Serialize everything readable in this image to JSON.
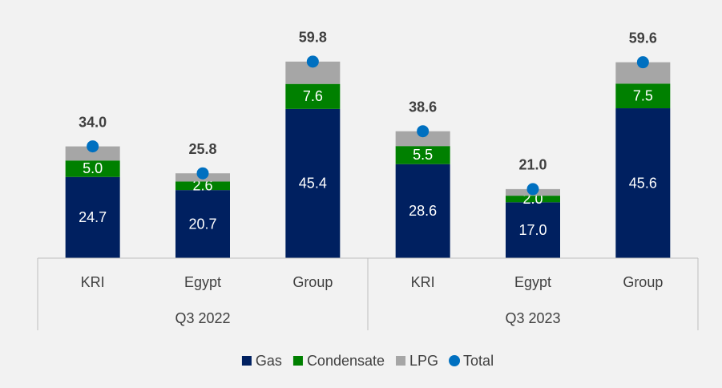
{
  "chart_data": {
    "type": "bar",
    "stacked": true,
    "categories": [
      "KRI",
      "Egypt",
      "Group",
      "KRI",
      "Egypt",
      "Group"
    ],
    "groups": [
      "Q3 2022",
      "Q3 2023"
    ],
    "series": [
      {
        "name": "Gas",
        "color": "#002060",
        "values": [
          24.7,
          20.7,
          45.4,
          28.6,
          17.0,
          45.6
        ],
        "value_labels": [
          "24.7",
          "20.7",
          "45.4",
          "28.6",
          "17.0",
          "45.6"
        ]
      },
      {
        "name": "Condensate",
        "color": "#008000",
        "values": [
          5.0,
          2.6,
          7.6,
          5.5,
          2.0,
          7.5
        ],
        "value_labels": [
          "5.0",
          "2.6",
          "7.6",
          "5.5",
          "2.0",
          "7.5"
        ]
      },
      {
        "name": "LPG",
        "color": "#a6a6a6",
        "values": [
          4.3,
          2.5,
          6.8,
          4.5,
          2.0,
          6.5
        ]
      },
      {
        "name": "Total",
        "color": "#0070c0",
        "type": "marker",
        "values": [
          34.0,
          25.8,
          59.8,
          38.6,
          21.0,
          59.6
        ],
        "value_labels": [
          "34.0",
          "25.8",
          "59.8",
          "38.6",
          "21.0",
          "59.6"
        ]
      }
    ],
    "ylim": [
      0,
      70
    ],
    "legend": "bottom"
  }
}
